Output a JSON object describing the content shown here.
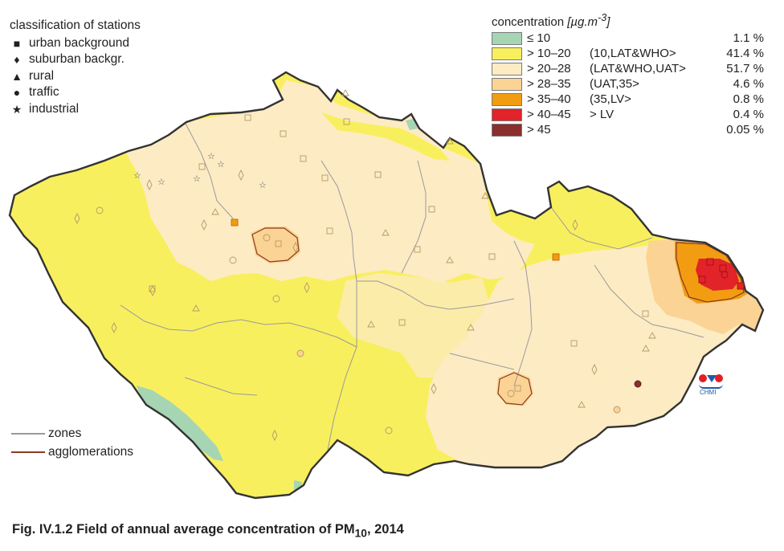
{
  "stations_legend": {
    "title": "classification of stations",
    "items": [
      {
        "symbol": "■",
        "label": "urban background"
      },
      {
        "symbol": "♦",
        "label": "suburban backgr."
      },
      {
        "symbol": "▲",
        "label": "rural"
      },
      {
        "symbol": "●",
        "label": "traffic"
      },
      {
        "symbol": "★",
        "label": "industrial"
      }
    ]
  },
  "concentration_legend": {
    "title": "concentration",
    "unit_prefix": "[µg.m",
    "unit_exp": "-3",
    "unit_suffix": "]",
    "classes": [
      {
        "range": "≤ 10",
        "note": "",
        "pct": "1.1 %",
        "color": "#a6d5b4"
      },
      {
        "range": "> 10–20",
        "note": "(10,LAT&WHO>",
        "pct": "41.4 %",
        "color": "#f8ef5e"
      },
      {
        "range": "> 20–28",
        "note": "(LAT&WHO,UAT>",
        "pct": "51.7 %",
        "color": "#fdebc4"
      },
      {
        "range": "> 28–35",
        "note": "(UAT,35>",
        "pct": "4.6 %",
        "color": "#fbd394"
      },
      {
        "range": "> 35–40",
        "note": "(35,LV>",
        "pct": "0.8 %",
        "color": "#f29c12"
      },
      {
        "range": "> 40–45",
        "note": "> LV",
        "pct": "0.4 %",
        "color": "#e2232a"
      },
      {
        "range": "> 45",
        "note": "",
        "pct": "0.05 %",
        "color": "#8b2e2e"
      }
    ]
  },
  "lines_legend": {
    "items": [
      {
        "label": "zones",
        "color": "#9a9a9a"
      },
      {
        "label": "agglomerations",
        "color": "#8b3a1f"
      }
    ]
  },
  "logo": {
    "text": "CHMI"
  },
  "caption": {
    "prefix": "Fig. IV.1.2  Field of annual average concentration of PM",
    "sub": "10",
    "suffix": ", 2014"
  },
  "colors": {
    "yellow": "#f8ef5e",
    "beige": "#fdebc4",
    "light_orange": "#fbd394",
    "orange": "#f29c12",
    "red": "#e2232a",
    "dark_red": "#8b2e2e",
    "green": "#a6d5b4",
    "border": "#333333",
    "zones": "#9a9a9a",
    "agglomeration": "#8b3a1f"
  }
}
